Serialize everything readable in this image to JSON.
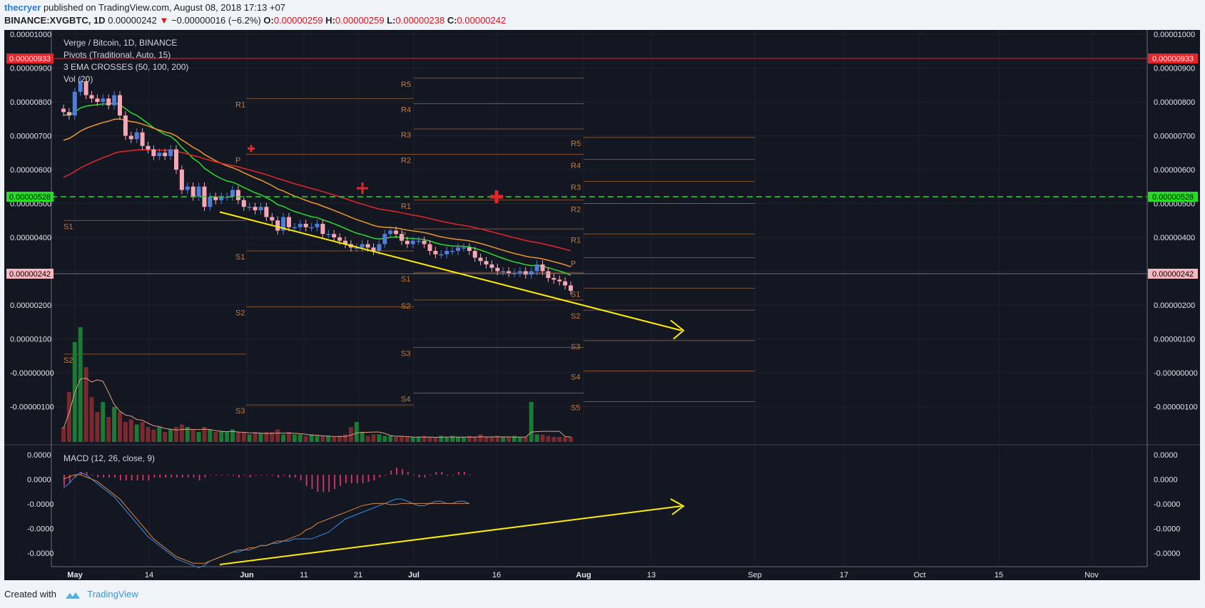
{
  "header": {
    "author": "thecryer",
    "published": "published on TradingView.com, August 08, 2018 17:13 +07",
    "symbol_prefix": "BINANCE:XVGBTC, 1D",
    "price": "0.00000242",
    "change_arrow": "▼",
    "change": "−0.00000016 (−6.2%)",
    "o_label": "O:",
    "o_value": "0.00000259",
    "h_label": "H:",
    "h_value": "0.00000259",
    "l_label": "L:",
    "l_value": "0.00000238",
    "c_label": "C:",
    "c_value": "0.00000242"
  },
  "legend": {
    "main": "Verge / Bitcoin, 1D, BINANCE",
    "pivots": "Pivots (Traditional, Auto, 15)",
    "ema": "3 EMA CROSSES (50, 100, 200)",
    "vol": "Vol (20)",
    "macd": "MACD (12, 26, close, 9)"
  },
  "badges": {
    "level_red": "0.00000933",
    "level_green": "0.00000528",
    "last_price": "0.00000242"
  },
  "footer": {
    "created_with": "Created with",
    "brand": "TradingView"
  },
  "colors": {
    "background": "#131722",
    "up_candle": "#4f7dd8",
    "down_candle": "#f7a7b3",
    "ema_fast": "#2fd92f",
    "ema_mid": "#f0962b",
    "ema_slow": "#e8242b",
    "pivot": "#c97a3a",
    "trendline": "#ffee00",
    "macd_line": "#3a8fe8",
    "signal_line": "#e0843a",
    "histogram": "#e0306a"
  },
  "chart_data": [
    {
      "type": "candlestick",
      "title": "Verge / Bitcoin, 1D, BINANCE",
      "y_ticks": [
        "0.00001000",
        "0.00000900",
        "0.00000800",
        "0.00000700",
        "0.00000600",
        "0.00000500",
        "0.00000400",
        "0.00000300",
        "0.00000200",
        "0.00000100",
        "-0.00000000",
        "-0.00000100"
      ],
      "x_ticks": [
        "May",
        "14",
        "Jun",
        "11",
        "21",
        "Jul",
        "16",
        "Aug",
        "13",
        "Sep",
        "17",
        "Oct",
        "15",
        "Nov"
      ],
      "ylim": [
        -1.8e-06,
        1.005e-05
      ],
      "candles_close": [
        7.7,
        7.6,
        8.3,
        8.6,
        8.2,
        8.1,
        8.0,
        8.1,
        7.9,
        8.2,
        7.6,
        7.0,
        6.9,
        7.1,
        6.7,
        6.6,
        6.4,
        6.5,
        6.4,
        6.6,
        6.0,
        5.4,
        5.5,
        5.2,
        5.5,
        4.9,
        5.2,
        5.1,
        5.2,
        5.2,
        5.4,
        5.1,
        4.9,
        4.9,
        4.8,
        4.9,
        4.6,
        4.5,
        4.2,
        4.6,
        4.3,
        4.3,
        4.4,
        4.3,
        4.3,
        4.4,
        4.1,
        4.1,
        4.0,
        3.9,
        3.8,
        3.7,
        3.7,
        3.8,
        3.7,
        3.6,
        3.8,
        4.1,
        4.2,
        4.1,
        3.9,
        3.8,
        3.9,
        3.9,
        3.8,
        3.6,
        3.5,
        3.5,
        3.6,
        3.6,
        3.7,
        3.7,
        3.6,
        3.4,
        3.3,
        3.2,
        3.1,
        3.0,
        3.0,
        2.95,
        2.95,
        3.0,
        2.9,
        3.0,
        3.2,
        3.0,
        2.8,
        2.75,
        2.7,
        2.58,
        2.42
      ],
      "ema_lines": [
        {
          "name": "EMA 50",
          "color": "#2fd92f"
        },
        {
          "name": "EMA 100",
          "color": "#f0962b"
        },
        {
          "name": "EMA 200",
          "color": "#e8242b"
        }
      ],
      "pivot_labels": [
        "R1",
        "P",
        "S1",
        "S2",
        "S3",
        "R5",
        "R4",
        "R3",
        "R2",
        "R1",
        "P",
        "S1",
        "S2",
        "S3",
        "S4",
        "R5",
        "R4",
        "R3",
        "R2",
        "R1",
        "P",
        "S1",
        "S2",
        "S3",
        "S4",
        "S5"
      ],
      "volume": [
        0.3,
        1.0,
        2.0,
        2.3,
        1.5,
        0.9,
        0.6,
        0.8,
        0.5,
        0.7,
        0.6,
        0.4,
        0.45,
        0.35,
        0.4,
        0.3,
        0.25,
        0.3,
        0.2,
        0.25,
        0.3,
        0.35,
        0.3,
        0.25,
        0.2,
        0.3,
        0.25,
        0.2,
        0.22,
        0.2,
        0.25,
        0.2,
        0.2,
        0.15,
        0.2,
        0.18,
        0.2,
        0.2,
        0.25,
        0.15,
        0.2,
        0.15,
        0.15,
        0.12,
        0.15,
        0.12,
        0.12,
        0.12,
        0.1,
        0.12,
        0.15,
        0.3,
        0.4,
        0.2,
        0.12,
        0.15,
        0.15,
        0.12,
        0.12,
        0.1,
        0.12,
        0.1,
        0.1,
        0.1,
        0.12,
        0.1,
        0.1,
        0.12,
        0.1,
        0.12,
        0.1,
        0.1,
        0.12,
        0.1,
        0.15,
        0.1,
        0.1,
        0.12,
        0.1,
        0.1,
        0.12,
        0.1,
        0.1,
        0.8,
        0.15,
        0.15,
        0.12,
        0.1,
        0.1,
        0.1,
        0.1
      ]
    },
    {
      "type": "macd",
      "title": "MACD (12, 26, close, 9)",
      "y_ticks": [
        "0.0000",
        "0.0000",
        "-0.0000",
        "-0.0000",
        "-0.0000"
      ],
      "macd": [
        -0.6,
        -0.4,
        -0.1,
        0.1,
        0.0,
        -0.2,
        -0.4,
        -0.6,
        -0.8,
        -1.0,
        -1.3,
        -1.6,
        -1.9,
        -2.2,
        -2.5,
        -2.8,
        -3.0,
        -3.2,
        -3.4,
        -3.6,
        -3.8,
        -3.9,
        -4.0,
        -4.1,
        -4.2,
        -4.1,
        -3.9,
        -3.8,
        -3.7,
        -3.6,
        -3.5,
        -3.5,
        -3.4,
        -3.4,
        -3.3,
        -3.2,
        -3.2,
        -3.1,
        -3.1,
        -3.0,
        -3.0,
        -2.9,
        -2.9,
        -2.9,
        -2.9,
        -2.8,
        -2.7,
        -2.6,
        -2.4,
        -2.2,
        -2.0,
        -1.9,
        -1.8,
        -1.7,
        -1.6,
        -1.5,
        -1.4,
        -1.3,
        -1.2,
        -1.1,
        -1.1,
        -1.2,
        -1.3,
        -1.4,
        -1.4,
        -1.3,
        -1.2,
        -1.2,
        -1.3,
        -1.3,
        -1.2,
        -1.2,
        -1.3
      ],
      "signal": [
        -0.2,
        -0.1,
        0.0,
        0.0,
        -0.1,
        -0.2,
        -0.3,
        -0.5,
        -0.7,
        -0.9,
        -1.1,
        -1.4,
        -1.7,
        -2.0,
        -2.3,
        -2.6,
        -2.9,
        -3.1,
        -3.3,
        -3.5,
        -3.7,
        -3.8,
        -3.9,
        -4.0,
        -4.0,
        -4.0,
        -3.9,
        -3.8,
        -3.7,
        -3.6,
        -3.5,
        -3.4,
        -3.4,
        -3.3,
        -3.3,
        -3.2,
        -3.2,
        -3.1,
        -3.0,
        -3.0,
        -2.9,
        -2.8,
        -2.7,
        -2.5,
        -2.4,
        -2.2,
        -2.1,
        -2.0,
        -1.9,
        -1.8,
        -1.7,
        -1.6,
        -1.5,
        -1.4,
        -1.35,
        -1.3,
        -1.3,
        -1.3,
        -1.35,
        -1.35,
        -1.3,
        -1.3,
        -1.3,
        -1.3,
        -1.3,
        -1.3,
        -1.3,
        -1.3,
        -1.3,
        -1.3,
        -1.3,
        -1.3,
        -1.3
      ],
      "x_ticks": [
        "May",
        "14",
        "Jun",
        "11",
        "21",
        "Jul",
        "16",
        "Aug",
        "13",
        "Sep",
        "17",
        "Oct",
        "15",
        "Nov"
      ]
    }
  ]
}
